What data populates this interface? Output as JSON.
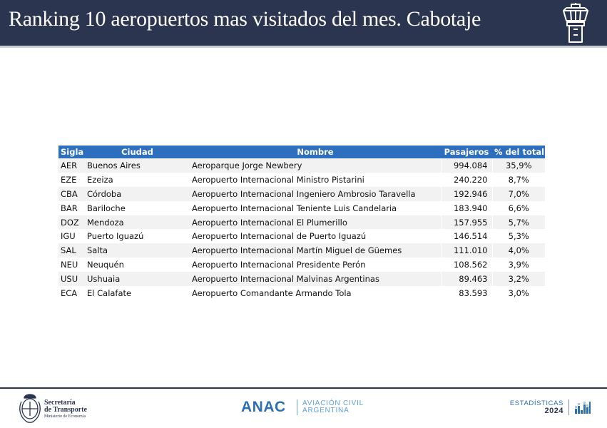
{
  "header": {
    "title": "Ranking 10 aeropuertos mas visitados del mes. Cabotaje",
    "icon": "control-tower-icon"
  },
  "table": {
    "columns": [
      "Sigla",
      "Ciudad",
      "Nombre",
      "Pasajeros",
      "% del total"
    ],
    "rows": [
      {
        "sigla": "AER",
        "ciudad": "Buenos Aires",
        "nombre": "Aeroparque Jorge Newbery",
        "pasajeros": "994.084",
        "pct": "35,9%"
      },
      {
        "sigla": "EZE",
        "ciudad": "Ezeiza",
        "nombre": "Aeropuerto Internacional Ministro Pistarini",
        "pasajeros": "240.220",
        "pct": "8,7%"
      },
      {
        "sigla": "CBA",
        "ciudad": "Córdoba",
        "nombre": "Aeropuerto Internacional Ingeniero Ambrosio Taravella",
        "pasajeros": "192.946",
        "pct": "7,0%"
      },
      {
        "sigla": "BAR",
        "ciudad": "Bariloche",
        "nombre": "Aeropuerto Internacional Teniente Luis Candelaria",
        "pasajeros": "183.940",
        "pct": "6,6%"
      },
      {
        "sigla": "DOZ",
        "ciudad": "Mendoza",
        "nombre": "Aeropuerto Internacional El Plumerillo",
        "pasajeros": "157.955",
        "pct": "5,7%"
      },
      {
        "sigla": "IGU",
        "ciudad": "Puerto Iguazú",
        "nombre": "Aeropuerto Internacional de Puerto Iguazú",
        "pasajeros": "146.514",
        "pct": "5,3%"
      },
      {
        "sigla": "SAL",
        "ciudad": "Salta",
        "nombre": "Aeropuerto Internacional Martín Miguel de Güemes",
        "pasajeros": "111.010",
        "pct": "4,0%"
      },
      {
        "sigla": "NEU",
        "ciudad": "Neuquén",
        "nombre": "Aeropuerto Internacional Presidente Perón",
        "pasajeros": "108.562",
        "pct": "3,9%"
      },
      {
        "sigla": "USU",
        "ciudad": "Ushuaia",
        "nombre": "Aeropuerto Internacional Malvinas Argentinas",
        "pasajeros": "89.463",
        "pct": "3,2%"
      },
      {
        "sigla": "ECA",
        "ciudad": "El Calafate",
        "nombre": "Aeropuerto Comandante Armando Tola",
        "pasajeros": "83.593",
        "pct": "3,0%"
      }
    ]
  },
  "footer": {
    "secretaria_line1": "Secretaría",
    "secretaria_line2": "de Transporte",
    "ministerio": "Ministerio de Economía",
    "anac": "ANAC",
    "anac_sub_line1": "AVIACIÓN CIVIL",
    "anac_sub_line2": "ARGENTINA",
    "stats_label": "ESTADÍSTICAS",
    "stats_year": "2024"
  },
  "colors": {
    "header_bg": "#2b3550",
    "table_header_bg": "#2e6ebf",
    "row_stripe": "#f2f2f2",
    "anac_blue": "#2c6fb3"
  }
}
